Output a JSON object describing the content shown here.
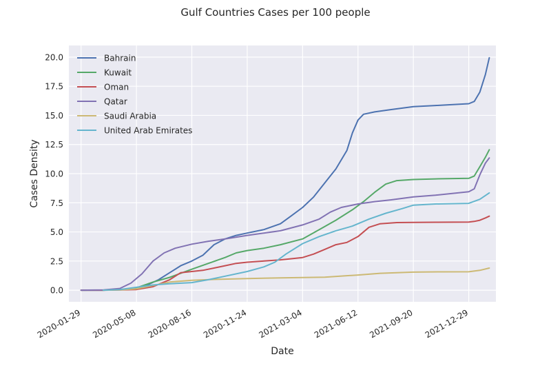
{
  "chart_data": {
    "type": "line",
    "title": "Gulf Countries Cases per 100  people",
    "xlabel": "Date",
    "ylabel": "Cases Density",
    "x_ticks": [
      "2020-01-29",
      "2020-05-08",
      "2020-08-16",
      "2020-11-24",
      "2021-03-04",
      "2021-06-12",
      "2021-09-20",
      "2021-12-29"
    ],
    "y_ticks": [
      "0.0",
      "2.5",
      "5.0",
      "7.5",
      "10.0",
      "12.5",
      "15.0",
      "17.5",
      "20.0"
    ],
    "xlim": [
      "2020-01-07",
      "2022-02-16"
    ],
    "ylim": [
      -1,
      21
    ],
    "grid": true,
    "legend_position": "top-left",
    "background_color": "#eaeaf2",
    "series": [
      {
        "name": "Bahrain",
        "color": "#4c72b0",
        "points": [
          [
            "2020-01-29",
            0.0
          ],
          [
            "2020-03-09",
            0.0
          ],
          [
            "2020-04-08",
            0.05
          ],
          [
            "2020-05-08",
            0.15
          ],
          [
            "2020-05-28",
            0.45
          ],
          [
            "2020-06-17",
            0.9
          ],
          [
            "2020-07-07",
            1.5
          ],
          [
            "2020-07-27",
            2.1
          ],
          [
            "2020-08-16",
            2.5
          ],
          [
            "2020-09-05",
            3.0
          ],
          [
            "2020-09-25",
            3.9
          ],
          [
            "2020-10-15",
            4.4
          ],
          [
            "2020-11-04",
            4.7
          ],
          [
            "2020-11-24",
            4.9
          ],
          [
            "2020-12-24",
            5.2
          ],
          [
            "2021-01-23",
            5.7
          ],
          [
            "2021-02-12",
            6.4
          ],
          [
            "2021-03-04",
            7.1
          ],
          [
            "2021-03-24",
            8.0
          ],
          [
            "2021-04-13",
            9.2
          ],
          [
            "2021-05-03",
            10.4
          ],
          [
            "2021-05-23",
            12.0
          ],
          [
            "2021-06-02",
            13.5
          ],
          [
            "2021-06-12",
            14.6
          ],
          [
            "2021-06-22",
            15.1
          ],
          [
            "2021-07-12",
            15.3
          ],
          [
            "2021-08-11",
            15.5
          ],
          [
            "2021-09-20",
            15.75
          ],
          [
            "2021-10-30",
            15.85
          ],
          [
            "2021-12-29",
            16.0
          ],
          [
            "2022-01-08",
            16.2
          ],
          [
            "2022-01-18",
            17.0
          ],
          [
            "2022-01-28",
            18.5
          ],
          [
            "2022-02-04",
            19.95
          ]
        ]
      },
      {
        "name": "Kuwait",
        "color": "#55a868",
        "points": [
          [
            "2020-01-29",
            0.0
          ],
          [
            "2020-03-09",
            0.0
          ],
          [
            "2020-04-08",
            0.05
          ],
          [
            "2020-05-08",
            0.2
          ],
          [
            "2020-06-07",
            0.7
          ],
          [
            "2020-07-07",
            1.1
          ],
          [
            "2020-08-16",
            1.8
          ],
          [
            "2020-09-15",
            2.3
          ],
          [
            "2020-10-15",
            2.8
          ],
          [
            "2020-11-04",
            3.2
          ],
          [
            "2020-11-24",
            3.4
          ],
          [
            "2020-12-24",
            3.6
          ],
          [
            "2021-01-23",
            3.9
          ],
          [
            "2021-03-04",
            4.4
          ],
          [
            "2021-04-03",
            5.2
          ],
          [
            "2021-05-03",
            6.0
          ],
          [
            "2021-06-02",
            6.9
          ],
          [
            "2021-06-22",
            7.6
          ],
          [
            "2021-07-12",
            8.4
          ],
          [
            "2021-08-01",
            9.1
          ],
          [
            "2021-08-21",
            9.4
          ],
          [
            "2021-09-20",
            9.5
          ],
          [
            "2021-10-30",
            9.55
          ],
          [
            "2021-12-29",
            9.6
          ],
          [
            "2022-01-08",
            9.8
          ],
          [
            "2022-01-18",
            10.6
          ],
          [
            "2022-01-28",
            11.4
          ],
          [
            "2022-02-04",
            12.05
          ]
        ]
      },
      {
        "name": "Oman",
        "color": "#c44e52",
        "points": [
          [
            "2020-01-29",
            0.0
          ],
          [
            "2020-03-09",
            0.0
          ],
          [
            "2020-04-08",
            0.02
          ],
          [
            "2020-05-08",
            0.05
          ],
          [
            "2020-06-07",
            0.3
          ],
          [
            "2020-07-07",
            0.9
          ],
          [
            "2020-07-27",
            1.5
          ],
          [
            "2020-08-16",
            1.6
          ],
          [
            "2020-09-05",
            1.7
          ],
          [
            "2020-09-25",
            1.9
          ],
          [
            "2020-10-15",
            2.1
          ],
          [
            "2020-11-04",
            2.3
          ],
          [
            "2020-11-24",
            2.4
          ],
          [
            "2020-12-24",
            2.5
          ],
          [
            "2021-01-23",
            2.6
          ],
          [
            "2021-03-04",
            2.8
          ],
          [
            "2021-03-24",
            3.1
          ],
          [
            "2021-04-13",
            3.5
          ],
          [
            "2021-05-03",
            3.9
          ],
          [
            "2021-05-23",
            4.1
          ],
          [
            "2021-06-12",
            4.6
          ],
          [
            "2021-07-02",
            5.4
          ],
          [
            "2021-07-22",
            5.7
          ],
          [
            "2021-08-21",
            5.8
          ],
          [
            "2021-09-20",
            5.82
          ],
          [
            "2021-10-30",
            5.83
          ],
          [
            "2021-12-29",
            5.85
          ],
          [
            "2022-01-08",
            5.9
          ],
          [
            "2022-01-18",
            6.0
          ],
          [
            "2022-01-28",
            6.2
          ],
          [
            "2022-02-04",
            6.35
          ]
        ]
      },
      {
        "name": "Qatar",
        "color": "#8172b3",
        "points": [
          [
            "2020-01-29",
            0.0
          ],
          [
            "2020-03-09",
            0.02
          ],
          [
            "2020-04-08",
            0.15
          ],
          [
            "2020-04-28",
            0.6
          ],
          [
            "2020-05-18",
            1.4
          ],
          [
            "2020-06-07",
            2.5
          ],
          [
            "2020-06-27",
            3.2
          ],
          [
            "2020-07-17",
            3.6
          ],
          [
            "2020-08-16",
            3.95
          ],
          [
            "2020-09-15",
            4.2
          ],
          [
            "2020-10-15",
            4.4
          ],
          [
            "2020-11-24",
            4.7
          ],
          [
            "2020-12-24",
            4.9
          ],
          [
            "2021-01-23",
            5.1
          ],
          [
            "2021-03-04",
            5.6
          ],
          [
            "2021-04-03",
            6.1
          ],
          [
            "2021-04-23",
            6.7
          ],
          [
            "2021-05-13",
            7.1
          ],
          [
            "2021-06-12",
            7.4
          ],
          [
            "2021-07-12",
            7.6
          ],
          [
            "2021-08-11",
            7.75
          ],
          [
            "2021-09-20",
            8.0
          ],
          [
            "2021-10-30",
            8.15
          ],
          [
            "2021-12-29",
            8.45
          ],
          [
            "2022-01-08",
            8.7
          ],
          [
            "2022-01-18",
            9.9
          ],
          [
            "2022-01-28",
            10.9
          ],
          [
            "2022-02-04",
            11.35
          ]
        ]
      },
      {
        "name": "Saudi Arabia",
        "color": "#ccb974",
        "points": [
          [
            "2020-03-09",
            0.0
          ],
          [
            "2020-04-08",
            0.02
          ],
          [
            "2020-05-08",
            0.12
          ],
          [
            "2020-06-07",
            0.4
          ],
          [
            "2020-07-07",
            0.7
          ],
          [
            "2020-08-16",
            0.85
          ],
          [
            "2020-09-25",
            0.92
          ],
          [
            "2020-11-24",
            1.0
          ],
          [
            "2021-01-23",
            1.05
          ],
          [
            "2021-03-04",
            1.08
          ],
          [
            "2021-04-13",
            1.12
          ],
          [
            "2021-06-12",
            1.3
          ],
          [
            "2021-07-22",
            1.45
          ],
          [
            "2021-09-20",
            1.55
          ],
          [
            "2021-11-09",
            1.57
          ],
          [
            "2021-12-29",
            1.58
          ],
          [
            "2022-01-18",
            1.7
          ],
          [
            "2022-02-04",
            1.9
          ]
        ]
      },
      {
        "name": "United Arab Emirates",
        "color": "#64b5cd",
        "points": [
          [
            "2020-03-09",
            0.0
          ],
          [
            "2020-04-08",
            0.05
          ],
          [
            "2020-05-08",
            0.25
          ],
          [
            "2020-06-07",
            0.45
          ],
          [
            "2020-07-07",
            0.55
          ],
          [
            "2020-08-16",
            0.65
          ],
          [
            "2020-09-15",
            0.9
          ],
          [
            "2020-10-15",
            1.2
          ],
          [
            "2020-11-24",
            1.6
          ],
          [
            "2020-12-24",
            2.0
          ],
          [
            "2021-01-13",
            2.4
          ],
          [
            "2021-02-02",
            3.1
          ],
          [
            "2021-03-04",
            4.0
          ],
          [
            "2021-04-03",
            4.6
          ],
          [
            "2021-05-03",
            5.1
          ],
          [
            "2021-06-02",
            5.5
          ],
          [
            "2021-07-02",
            6.1
          ],
          [
            "2021-08-01",
            6.6
          ],
          [
            "2021-08-31",
            7.0
          ],
          [
            "2021-09-20",
            7.3
          ],
          [
            "2021-10-30",
            7.4
          ],
          [
            "2021-12-29",
            7.45
          ],
          [
            "2022-01-18",
            7.8
          ],
          [
            "2022-02-04",
            8.35
          ]
        ]
      }
    ]
  }
}
